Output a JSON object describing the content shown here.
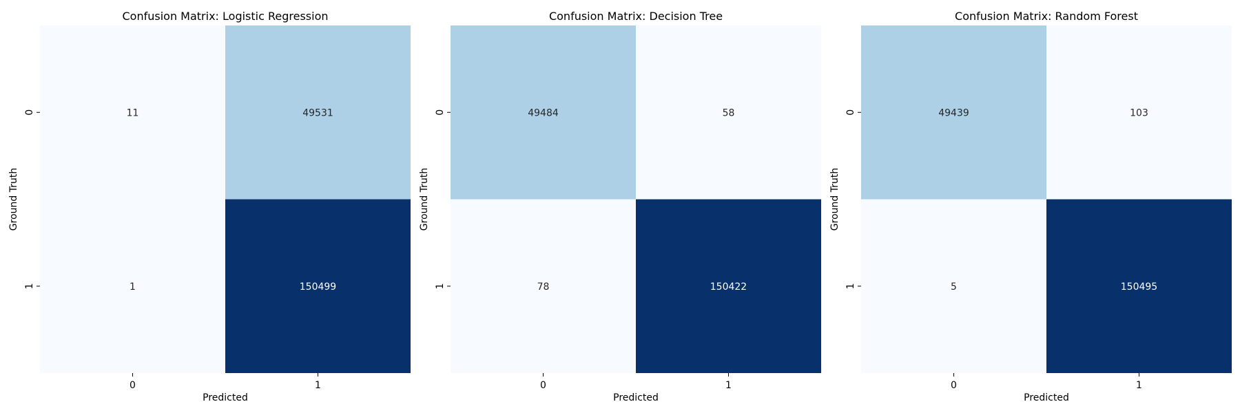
{
  "chart_data": [
    {
      "type": "heatmap",
      "title": "Confusion Matrix: Logistic Regression",
      "xlabel": "Predicted",
      "ylabel": "Ground Truth",
      "x_categories": [
        "0",
        "1"
      ],
      "y_categories": [
        "0",
        "1"
      ],
      "values": [
        [
          11,
          49531
        ],
        [
          1,
          150499
        ]
      ],
      "colormap": "Blues",
      "colorbar": false
    },
    {
      "type": "heatmap",
      "title": "Confusion Matrix: Decision Tree",
      "xlabel": "Predicted",
      "ylabel": "Ground Truth",
      "x_categories": [
        "0",
        "1"
      ],
      "y_categories": [
        "0",
        "1"
      ],
      "values": [
        [
          49484,
          58
        ],
        [
          78,
          150422
        ]
      ],
      "colormap": "Blues",
      "colorbar": false
    },
    {
      "type": "heatmap",
      "title": "Confusion Matrix: Random Forest",
      "xlabel": "Predicted",
      "ylabel": "Ground Truth",
      "x_categories": [
        "0",
        "1"
      ],
      "y_categories": [
        "0",
        "1"
      ],
      "values": [
        [
          49439,
          103
        ],
        [
          5,
          150495
        ]
      ],
      "colormap": "Blues",
      "colorbar": false
    }
  ],
  "colors": {
    "blues_low": "#f7fbff",
    "blues_mid": "#abd0e6",
    "blues_high": "#08306b",
    "text_dark": "#262626",
    "text_light": "#ffffff"
  }
}
